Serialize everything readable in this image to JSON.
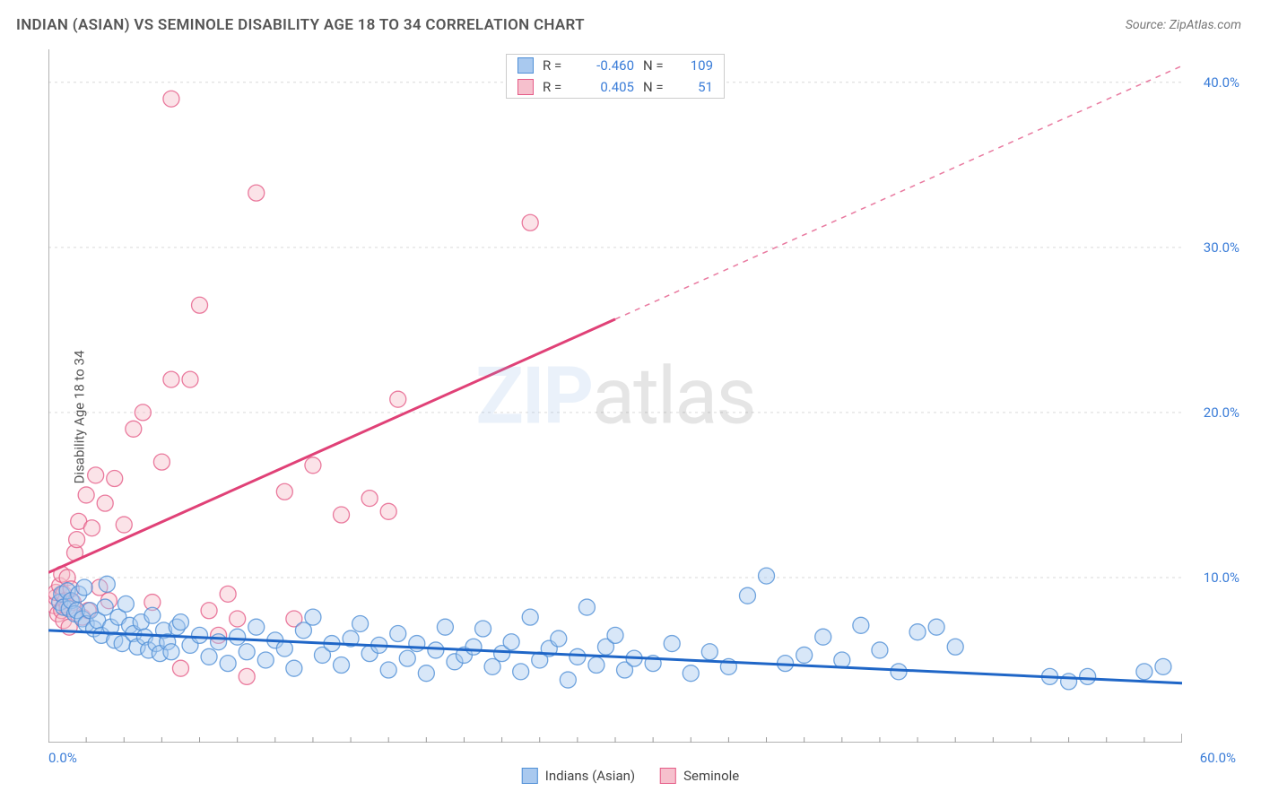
{
  "title": "INDIAN (ASIAN) VS SEMINOLE DISABILITY AGE 18 TO 34 CORRELATION CHART",
  "source": "Source: ZipAtlas.com",
  "ylabel": "Disability Age 18 to 34",
  "watermark_part1": "ZIP",
  "watermark_part2": "atlas",
  "chart": {
    "type": "scatter",
    "background_color": "#ffffff",
    "grid_color": "#d9d9d9",
    "axis_color": "#999999",
    "tick_label_color": "#3b7dd8",
    "font_family": "Arial",
    "title_fontsize": 17,
    "label_fontsize": 15,
    "marker_radius": 9,
    "marker_opacity": 0.45,
    "line_width": 3,
    "xlim": [
      0,
      60
    ],
    "ylim": [
      0,
      42
    ],
    "x_ticks_label": [
      "0.0%",
      "60.0%"
    ],
    "y_ticks": [
      10,
      20,
      30,
      40
    ],
    "y_tick_labels": [
      "10.0%",
      "20.0%",
      "30.0%",
      "40.0%"
    ],
    "x_minor_step": 2,
    "series": [
      {
        "name": "Indians (Asian)",
        "color_fill": "#a9c9ef",
        "color_stroke": "#4f8fd6",
        "trend_color": "#1f66c7",
        "R": "-0.460",
        "N": "109",
        "trend": {
          "x1": 0,
          "y1": 6.8,
          "x2": 60,
          "y2": 3.6,
          "dashed_from_x": null
        },
        "points": [
          [
            0.6,
            8.5
          ],
          [
            0.7,
            9.0
          ],
          [
            0.8,
            8.2
          ],
          [
            1.0,
            9.2
          ],
          [
            1.1,
            8.1
          ],
          [
            1.2,
            8.6
          ],
          [
            1.4,
            7.8
          ],
          [
            1.5,
            8.0
          ],
          [
            1.6,
            9.0
          ],
          [
            1.8,
            7.5
          ],
          [
            1.9,
            9.4
          ],
          [
            2.0,
            7.2
          ],
          [
            2.2,
            8.0
          ],
          [
            2.4,
            6.9
          ],
          [
            2.6,
            7.4
          ],
          [
            2.8,
            6.5
          ],
          [
            3.0,
            8.2
          ],
          [
            3.1,
            9.6
          ],
          [
            3.3,
            7.0
          ],
          [
            3.5,
            6.2
          ],
          [
            3.7,
            7.6
          ],
          [
            3.9,
            6.0
          ],
          [
            4.1,
            8.4
          ],
          [
            4.3,
            7.1
          ],
          [
            4.5,
            6.6
          ],
          [
            4.7,
            5.8
          ],
          [
            4.9,
            7.3
          ],
          [
            5.1,
            6.4
          ],
          [
            5.3,
            5.6
          ],
          [
            5.5,
            7.7
          ],
          [
            5.7,
            6.0
          ],
          [
            5.9,
            5.4
          ],
          [
            6.1,
            6.8
          ],
          [
            6.3,
            6.1
          ],
          [
            6.5,
            5.5
          ],
          [
            6.8,
            7.0
          ],
          [
            7.0,
            7.3
          ],
          [
            7.5,
            5.9
          ],
          [
            8.0,
            6.5
          ],
          [
            8.5,
            5.2
          ],
          [
            9.0,
            6.1
          ],
          [
            9.5,
            4.8
          ],
          [
            10.0,
            6.4
          ],
          [
            10.5,
            5.5
          ],
          [
            11.0,
            7.0
          ],
          [
            11.5,
            5.0
          ],
          [
            12.0,
            6.2
          ],
          [
            12.5,
            5.7
          ],
          [
            13.0,
            4.5
          ],
          [
            13.5,
            6.8
          ],
          [
            14.0,
            7.6
          ],
          [
            14.5,
            5.3
          ],
          [
            15.0,
            6.0
          ],
          [
            15.5,
            4.7
          ],
          [
            16.0,
            6.3
          ],
          [
            16.5,
            7.2
          ],
          [
            17.0,
            5.4
          ],
          [
            17.5,
            5.9
          ],
          [
            18.0,
            4.4
          ],
          [
            18.5,
            6.6
          ],
          [
            19.0,
            5.1
          ],
          [
            19.5,
            6.0
          ],
          [
            20.0,
            4.2
          ],
          [
            20.5,
            5.6
          ],
          [
            21.0,
            7.0
          ],
          [
            21.5,
            4.9
          ],
          [
            22.0,
            5.3
          ],
          [
            22.5,
            5.8
          ],
          [
            23.0,
            6.9
          ],
          [
            23.5,
            4.6
          ],
          [
            24.0,
            5.4
          ],
          [
            24.5,
            6.1
          ],
          [
            25.0,
            4.3
          ],
          [
            25.5,
            7.6
          ],
          [
            26.0,
            5.0
          ],
          [
            26.5,
            5.7
          ],
          [
            27.0,
            6.3
          ],
          [
            27.5,
            3.8
          ],
          [
            28.0,
            5.2
          ],
          [
            28.5,
            8.2
          ],
          [
            29.0,
            4.7
          ],
          [
            29.5,
            5.8
          ],
          [
            30.0,
            6.5
          ],
          [
            30.5,
            4.4
          ],
          [
            31.0,
            5.1
          ],
          [
            32.0,
            4.8
          ],
          [
            33.0,
            6.0
          ],
          [
            34.0,
            4.2
          ],
          [
            35.0,
            5.5
          ],
          [
            36.0,
            4.6
          ],
          [
            37.0,
            8.9
          ],
          [
            38.0,
            10.1
          ],
          [
            39.0,
            4.8
          ],
          [
            40.0,
            5.3
          ],
          [
            41.0,
            6.4
          ],
          [
            42.0,
            5.0
          ],
          [
            43.0,
            7.1
          ],
          [
            44.0,
            5.6
          ],
          [
            45.0,
            4.3
          ],
          [
            46.0,
            6.7
          ],
          [
            47.0,
            7.0
          ],
          [
            48.0,
            5.8
          ],
          [
            53.0,
            4.0
          ],
          [
            54.0,
            3.7
          ],
          [
            55.0,
            4.0
          ],
          [
            58.0,
            4.3
          ],
          [
            59.0,
            4.6
          ]
        ]
      },
      {
        "name": "Seminole",
        "color_fill": "#f6c0cd",
        "color_stroke": "#e55b87",
        "trend_color": "#e04177",
        "R": "0.405",
        "N": "51",
        "trend": {
          "x1": 0,
          "y1": 10.3,
          "x2": 60,
          "y2": 41.0,
          "dashed_from_x": 30
        },
        "points": [
          [
            0.3,
            8.3
          ],
          [
            0.4,
            8.8
          ],
          [
            0.4,
            9.1
          ],
          [
            0.5,
            7.8
          ],
          [
            0.6,
            9.5
          ],
          [
            0.7,
            8.0
          ],
          [
            0.7,
            10.2
          ],
          [
            0.8,
            7.4
          ],
          [
            0.8,
            9.0
          ],
          [
            0.9,
            8.6
          ],
          [
            1.0,
            10.0
          ],
          [
            1.0,
            8.2
          ],
          [
            1.1,
            7.0
          ],
          [
            1.2,
            9.3
          ],
          [
            1.3,
            8.5
          ],
          [
            1.4,
            11.5
          ],
          [
            1.5,
            12.3
          ],
          [
            1.6,
            13.4
          ],
          [
            1.8,
            7.6
          ],
          [
            2.0,
            15.0
          ],
          [
            2.1,
            8.0
          ],
          [
            2.3,
            13.0
          ],
          [
            2.5,
            16.2
          ],
          [
            2.7,
            9.4
          ],
          [
            3.0,
            14.5
          ],
          [
            3.2,
            8.6
          ],
          [
            3.5,
            16.0
          ],
          [
            4.0,
            13.2
          ],
          [
            4.5,
            19.0
          ],
          [
            5.0,
            20.0
          ],
          [
            5.5,
            8.5
          ],
          [
            6.0,
            17.0
          ],
          [
            6.5,
            22.0
          ],
          [
            7.0,
            4.5
          ],
          [
            7.5,
            22.0
          ],
          [
            8.0,
            26.5
          ],
          [
            8.5,
            8.0
          ],
          [
            9.0,
            6.5
          ],
          [
            9.5,
            9.0
          ],
          [
            6.5,
            39.0
          ],
          [
            10.0,
            7.5
          ],
          [
            10.5,
            4.0
          ],
          [
            11.0,
            33.3
          ],
          [
            12.5,
            15.2
          ],
          [
            13.0,
            7.5
          ],
          [
            14.0,
            16.8
          ],
          [
            15.5,
            13.8
          ],
          [
            17.0,
            14.8
          ],
          [
            18.0,
            14.0
          ],
          [
            18.5,
            20.8
          ],
          [
            25.5,
            31.5
          ]
        ]
      }
    ]
  }
}
